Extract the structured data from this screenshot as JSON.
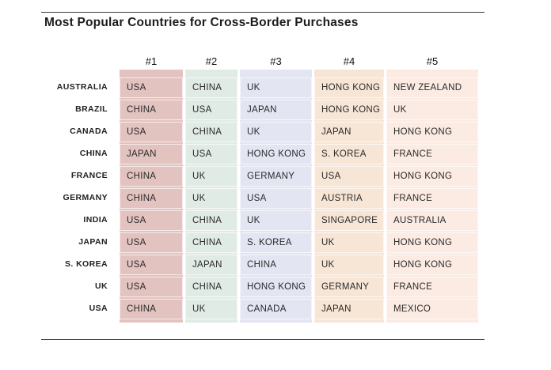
{
  "chart_data": {
    "type": "table",
    "title": "Most Popular Countries for Cross-Border Purchases",
    "columns": [
      "#1",
      "#2",
      "#3",
      "#4",
      "#5"
    ],
    "column_colors": [
      "#e3c3c0",
      "#e1ebe6",
      "#e3e6f2",
      "#f7e6d6",
      "#fbebe3"
    ],
    "rows": [
      {
        "country": "AUSTRALIA",
        "values": [
          "USA",
          "CHINA",
          "UK",
          "HONG KONG",
          "NEW ZEALAND"
        ]
      },
      {
        "country": "BRAZIL",
        "values": [
          "CHINA",
          "USA",
          "JAPAN",
          "HONG KONG",
          "UK"
        ]
      },
      {
        "country": "CANADA",
        "values": [
          "USA",
          "CHINA",
          "UK",
          "JAPAN",
          "HONG KONG"
        ]
      },
      {
        "country": "CHINA",
        "values": [
          "JAPAN",
          "USA",
          "HONG KONG",
          "S. KOREA",
          "FRANCE"
        ]
      },
      {
        "country": "FRANCE",
        "values": [
          "CHINA",
          "UK",
          "GERMANY",
          "USA",
          "HONG KONG"
        ]
      },
      {
        "country": "GERMANY",
        "values": [
          "CHINA",
          "UK",
          "USA",
          "AUSTRIA",
          "FRANCE"
        ]
      },
      {
        "country": "INDIA",
        "values": [
          "USA",
          "CHINA",
          "UK",
          "SINGAPORE",
          "AUSTRALIA"
        ]
      },
      {
        "country": "JAPAN",
        "values": [
          "USA",
          "CHINA",
          "S. KOREA",
          "UK",
          "HONG KONG"
        ]
      },
      {
        "country": "S. KOREA",
        "values": [
          "USA",
          "JAPAN",
          "CHINA",
          "UK",
          "HONG KONG"
        ]
      },
      {
        "country": "UK",
        "values": [
          "USA",
          "CHINA",
          "HONG KONG",
          "GERMANY",
          "FRANCE"
        ]
      },
      {
        "country": "USA",
        "values": [
          "CHINA",
          "UK",
          "CANADA",
          "JAPAN",
          "MEXICO"
        ]
      }
    ]
  }
}
